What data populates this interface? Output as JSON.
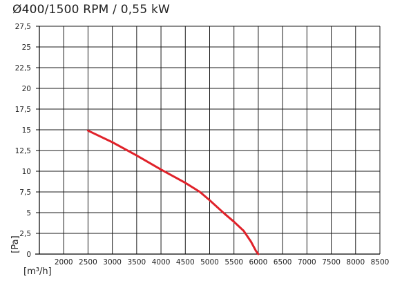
{
  "chart_data": {
    "type": "line",
    "title": "Ø400/1500 RPM / 0,55 kW",
    "xlabel": "[m³/h]",
    "ylabel": "[Pa]",
    "xlim": [
      1500,
      8500
    ],
    "ylim": [
      0,
      27.5
    ],
    "x_ticks": [
      2000,
      2500,
      3000,
      3500,
      4000,
      4500,
      5000,
      5500,
      6000,
      6500,
      7000,
      7500,
      8000,
      8500
    ],
    "x_tick_labels": [
      "2000",
      "2500",
      "3000",
      "3500",
      "4000",
      "4500",
      "5000",
      "5500",
      "6000",
      "6500",
      "7000",
      "7500",
      "8000",
      "8500"
    ],
    "y_ticks": [
      0,
      2.5,
      5,
      7.5,
      10,
      12.5,
      15,
      17.5,
      20,
      22.5,
      25,
      27.5
    ],
    "y_tick_labels": [
      "0",
      "2,5",
      "5",
      "7,5",
      "10",
      "12,5",
      "15",
      "17,5",
      "20",
      "22,5",
      "25",
      "27,5"
    ],
    "grid": true,
    "series": [
      {
        "color": "#e0222a",
        "x": [
          2500,
          3000,
          3500,
          4000,
          4500,
          4800,
          5000,
          5300,
          5500,
          5700,
          5850,
          5950,
          6000
        ],
        "y": [
          14.9,
          13.5,
          11.9,
          10.2,
          8.6,
          7.5,
          6.5,
          4.9,
          3.9,
          2.8,
          1.5,
          0.4,
          0
        ]
      }
    ]
  }
}
